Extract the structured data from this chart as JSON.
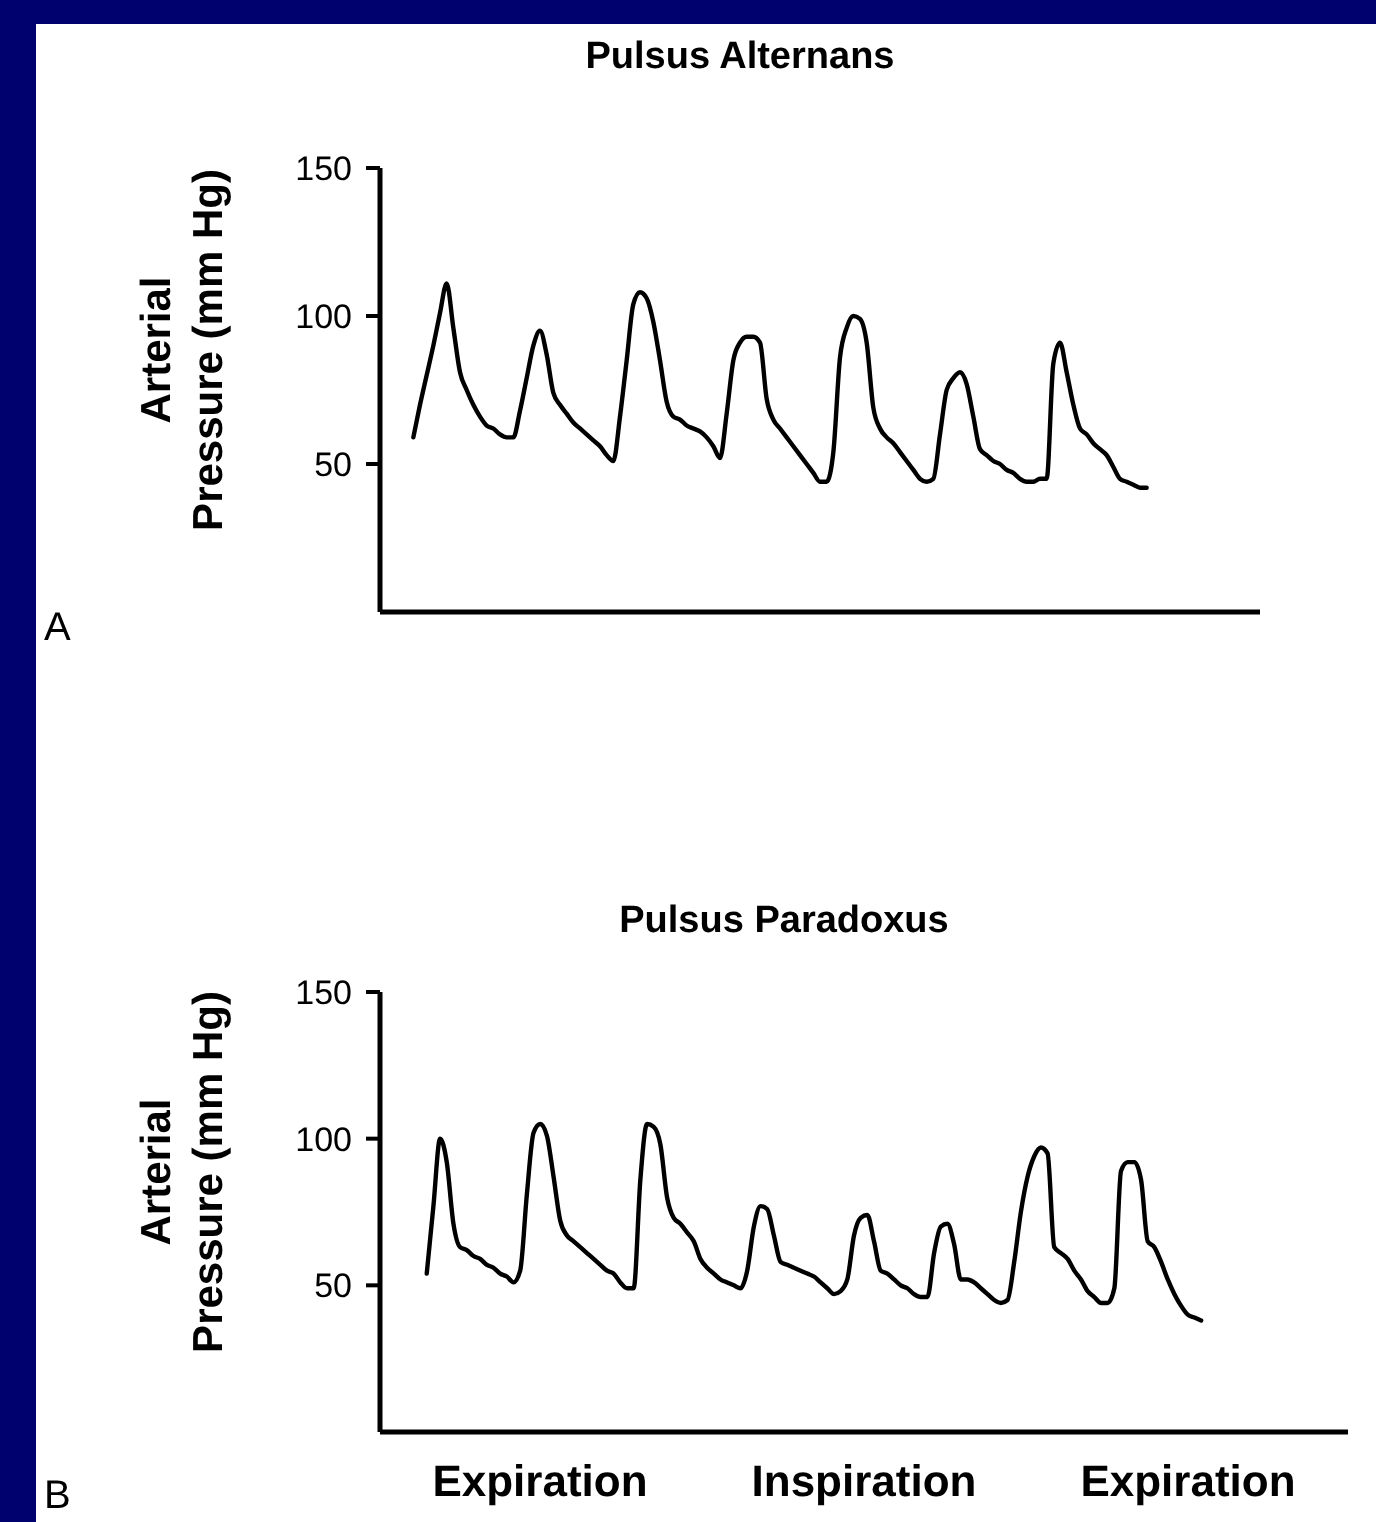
{
  "chart_data": [
    {
      "type": "line",
      "title": "Pulsus Alternans",
      "ylabel": "Arterial Pressure (mm Hg)",
      "ylim": [
        0,
        150
      ],
      "yticks": [
        50,
        100,
        150
      ],
      "grid": false,
      "tick_labels": "y",
      "annotations": [
        "A"
      ],
      "categories": [
        null,
        null,
        null,
        null,
        null,
        null,
        null,
        null,
        null,
        null,
        null,
        null,
        null,
        null,
        null,
        null,
        null,
        null,
        null,
        null,
        null,
        null,
        null,
        null,
        null,
        null,
        null,
        null,
        null,
        null,
        null,
        null,
        null,
        null,
        null,
        null,
        null,
        null,
        null,
        null,
        null,
        null,
        null,
        null,
        null,
        null,
        null,
        null,
        null,
        null,
        null,
        null,
        null,
        null,
        null,
        null,
        null,
        null,
        null,
        null,
        null,
        null,
        null,
        null,
        null,
        null,
        null,
        null,
        null,
        null,
        null,
        null,
        null,
        null,
        null,
        null,
        null,
        null,
        null,
        null,
        null,
        null,
        null,
        null,
        null,
        null,
        null,
        null,
        null,
        null,
        null,
        null,
        null,
        null,
        null,
        null,
        null,
        null,
        null,
        null,
        null,
        null,
        null,
        null,
        null,
        null,
        null,
        null,
        null,
        null,
        null,
        null,
        null,
        null,
        null,
        null,
        null,
        null,
        null,
        null,
        null,
        null,
        null,
        null,
        null,
        null,
        null,
        null,
        null,
        null,
        null,
        null,
        null
      ],
      "series": [
        {
          "color": "#000000",
          "values": [
            null,
            null,
            null,
            null,
            null,
            59,
            70,
            80,
            90,
            101,
            111,
            96,
            81,
            75,
            70,
            66,
            63,
            62,
            60,
            59,
            59,
            68,
            79,
            90,
            95,
            87,
            74,
            70,
            67,
            64,
            62,
            60,
            58,
            56,
            53,
            51,
            66,
            85,
            104,
            108,
            106,
            98,
            85,
            71,
            66,
            65,
            63,
            62,
            61,
            59,
            56,
            52,
            67,
            85,
            91,
            93,
            93,
            91,
            72,
            65,
            62,
            59,
            56,
            53,
            50,
            47,
            44,
            44,
            54,
            86,
            96,
            100,
            99,
            91,
            69,
            62,
            59,
            57,
            54,
            51,
            48,
            45,
            44,
            45,
            60,
            75,
            79,
            81,
            77,
            66,
            55,
            53,
            51,
            50,
            48,
            47,
            45,
            44,
            44,
            45,
            45,
            84,
            91,
            81,
            70,
            62,
            60,
            57,
            55,
            53,
            49,
            45,
            44,
            43,
            42,
            42,
            null,
            null,
            null,
            null,
            null,
            null,
            null,
            null,
            null,
            null,
            null,
            null,
            null,
            null,
            null,
            null,
            null
          ]
        }
      ]
    },
    {
      "type": "line",
      "title": "Pulsus Paradoxus",
      "ylabel": "Arterial Pressure (mm Hg)",
      "ylim": [
        0,
        150
      ],
      "yticks": [
        50,
        100,
        150
      ],
      "grid": false,
      "tick_labels": "y",
      "annotations": [
        "B",
        "Expiration",
        "Inspiration",
        "Expiration"
      ],
      "categories": [
        null,
        null,
        null,
        null,
        null,
        null,
        null,
        null,
        null,
        null,
        null,
        null,
        null,
        null,
        null,
        null,
        null,
        null,
        null,
        null,
        null,
        null,
        null,
        null,
        null,
        null,
        null,
        null,
        null,
        null,
        null,
        null,
        null,
        null,
        null,
        null,
        null,
        null,
        null,
        null,
        null,
        null,
        null,
        null,
        null,
        null,
        null,
        null,
        null,
        null,
        null,
        null,
        null,
        null,
        null,
        null,
        null,
        null,
        null,
        null,
        null,
        null,
        null,
        null,
        null,
        null,
        null,
        null,
        null,
        null,
        null,
        null,
        null,
        null,
        null,
        null,
        null,
        null,
        null,
        null,
        null,
        null,
        null,
        null,
        null,
        null,
        null,
        null,
        null,
        null,
        null,
        null,
        null,
        null,
        null,
        null,
        null,
        null,
        null,
        null,
        null,
        null,
        null,
        null,
        null,
        null,
        null,
        null,
        null,
        null,
        null,
        null,
        null,
        null,
        null,
        null,
        null,
        null,
        null,
        null,
        null,
        null,
        null,
        null,
        null,
        null,
        null,
        null,
        null,
        null,
        null,
        null,
        null,
        null,
        null,
        null,
        null,
        null,
        null,
        null,
        null,
        null,
        null,
        null,
        null,
        null
      ],
      "series": [
        {
          "color": "#000000",
          "values": [
            null,
            null,
            null,
            null,
            null,
            null,
            null,
            54,
            77,
            100,
            92,
            71,
            63,
            62,
            60,
            59,
            57,
            56,
            54,
            53,
            51,
            55,
            81,
            102,
            105,
            101,
            87,
            72,
            67,
            65,
            63,
            61,
            59,
            57,
            55,
            54,
            51,
            49,
            49,
            86,
            105,
            104,
            98,
            80,
            73,
            71,
            68,
            65,
            59,
            56,
            54,
            52,
            51,
            50,
            49,
            55,
            70,
            77,
            76,
            67,
            58,
            57,
            56,
            55,
            54,
            53,
            51,
            49,
            47,
            48,
            52,
            67,
            73,
            74,
            65,
            55,
            54,
            52,
            50,
            49,
            47,
            46,
            46,
            61,
            70,
            71,
            64,
            52,
            52,
            51,
            49,
            47,
            45,
            44,
            45,
            58,
            75,
            87,
            94,
            97,
            95,
            63,
            61,
            59,
            55,
            52,
            48,
            46,
            44,
            44,
            49,
            89,
            92,
            92,
            86,
            65,
            63,
            58,
            52,
            47,
            43,
            40,
            39,
            38,
            null,
            null,
            null,
            null,
            null,
            null,
            null,
            null,
            null,
            null,
            null,
            null,
            null,
            null,
            null,
            null,
            null,
            null,
            null,
            null,
            null,
            null
          ]
        }
      ]
    }
  ]
}
